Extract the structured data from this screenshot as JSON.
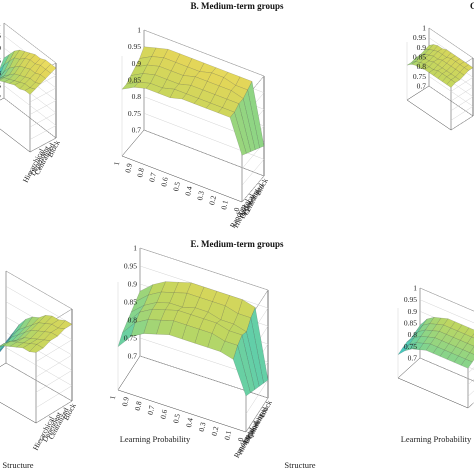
{
  "chart_data": [
    {
      "id": "A",
      "type": "surface",
      "title": "",
      "zlim": [
        0.7,
        1.0
      ],
      "z_ticks": [
        "1",
        "0.95",
        "0.9",
        "0.85",
        "0.8",
        "0.75",
        "0.7"
      ],
      "x_ticks": [],
      "y_ticks": [
        "Block",
        "Centralized",
        "Dependent",
        "Hierarchical"
      ],
      "xlabel": "",
      "ylabel": "",
      "categories_structure": [
        "Random",
        "Local",
        "Hierarchical",
        "Dependent",
        "Centralized",
        "Block"
      ],
      "learning_probability": [
        1,
        0.9,
        0.8,
        0.7,
        0.6,
        0.5,
        0.4,
        0.3,
        0.2,
        0.1,
        0
      ],
      "z": [
        [
          0.8,
          0.84,
          0.86,
          0.88,
          0.89,
          0.9,
          0.91,
          0.92,
          0.92,
          0.93,
          0.93
        ],
        [
          0.78,
          0.82,
          0.85,
          0.87,
          0.89,
          0.9,
          0.91,
          0.92,
          0.93,
          0.93,
          0.94
        ],
        [
          0.76,
          0.8,
          0.84,
          0.87,
          0.89,
          0.91,
          0.92,
          0.93,
          0.94,
          0.94,
          0.95
        ],
        [
          0.78,
          0.82,
          0.86,
          0.89,
          0.91,
          0.93,
          0.94,
          0.95,
          0.95,
          0.96,
          0.96
        ],
        [
          0.82,
          0.86,
          0.89,
          0.92,
          0.93,
          0.95,
          0.96,
          0.96,
          0.97,
          0.97,
          0.97
        ],
        [
          0.86,
          0.89,
          0.92,
          0.94,
          0.95,
          0.96,
          0.97,
          0.97,
          0.98,
          0.98,
          0.98
        ]
      ]
    },
    {
      "id": "B",
      "type": "surface",
      "title": "B. Medium-term groups",
      "zlim": [
        0.7,
        1.0
      ],
      "z_ticks": [
        "1",
        "0.95",
        "0.9",
        "0.85",
        "0.8",
        "0.75",
        "0.7"
      ],
      "x_ticks": [
        "1",
        "0.9",
        "0.8",
        "0.7",
        "0.6",
        "0.5",
        "0.4",
        "0.3",
        "0.2",
        "0.1",
        "0"
      ],
      "y_ticks": [
        "Random",
        "Local",
        "Hierarchical",
        "Dependent",
        "Centralized",
        "Block"
      ],
      "xlabel": "",
      "ylabel": "",
      "learning_probability": [
        1,
        0.9,
        0.8,
        0.7,
        0.6,
        0.5,
        0.4,
        0.3,
        0.2,
        0.1,
        0
      ],
      "categories_structure": [
        "Random",
        "Local",
        "Hierarchical",
        "Dependent",
        "Centralized",
        "Block"
      ],
      "z": [
        [
          0.9,
          0.92,
          0.93,
          0.93,
          0.93,
          0.94,
          0.94,
          0.94,
          0.94,
          0.94,
          0.84
        ],
        [
          0.9,
          0.92,
          0.93,
          0.93,
          0.94,
          0.94,
          0.94,
          0.94,
          0.94,
          0.94,
          0.83
        ],
        [
          0.91,
          0.93,
          0.94,
          0.94,
          0.94,
          0.95,
          0.95,
          0.95,
          0.95,
          0.95,
          0.82
        ],
        [
          0.92,
          0.94,
          0.95,
          0.95,
          0.95,
          0.96,
          0.96,
          0.96,
          0.96,
          0.95,
          0.81
        ],
        [
          0.93,
          0.95,
          0.96,
          0.96,
          0.96,
          0.96,
          0.97,
          0.97,
          0.96,
          0.96,
          0.8
        ],
        [
          0.95,
          0.96,
          0.97,
          0.97,
          0.97,
          0.97,
          0.97,
          0.97,
          0.97,
          0.97,
          0.79
        ]
      ]
    },
    {
      "id": "C",
      "type": "surface",
      "title": "",
      "zlim": [
        0.7,
        1.0
      ],
      "z_ticks": [
        "1",
        "0.95",
        "0.9",
        "0.85",
        "0.8",
        "0.75",
        "0.7"
      ],
      "x_ticks": [],
      "y_ticks": [],
      "xlabel": "",
      "ylabel": "",
      "learning_probability": [
        1,
        0.9,
        0.8,
        0.7,
        0.6,
        0.5,
        0.4,
        0.3,
        0.2,
        0.1,
        0
      ],
      "categories_structure": [
        "Random",
        "Local",
        "Hierarchical",
        "Dependent",
        "Centralized",
        "Block"
      ],
      "z": [
        [
          0.88,
          0.9,
          0.91,
          0.91,
          0.92,
          0.92,
          0.92,
          0.92,
          0.92,
          0.92,
          0.92
        ],
        [
          0.88,
          0.9,
          0.91,
          0.92,
          0.92,
          0.92,
          0.93,
          0.93,
          0.93,
          0.93,
          0.93
        ],
        [
          0.89,
          0.91,
          0.92,
          0.92,
          0.93,
          0.93,
          0.93,
          0.93,
          0.93,
          0.93,
          0.93
        ],
        [
          0.89,
          0.91,
          0.92,
          0.93,
          0.93,
          0.94,
          0.94,
          0.94,
          0.94,
          0.94,
          0.94
        ],
        [
          0.9,
          0.92,
          0.93,
          0.94,
          0.94,
          0.94,
          0.95,
          0.95,
          0.95,
          0.95,
          0.95
        ],
        [
          0.91,
          0.93,
          0.94,
          0.94,
          0.95,
          0.95,
          0.95,
          0.95,
          0.95,
          0.95,
          0.95
        ]
      ]
    },
    {
      "id": "D",
      "type": "surface",
      "title": "",
      "zlim": [
        0.7,
        1.0
      ],
      "z_ticks": [],
      "x_ticks": [],
      "y_ticks": [
        "Block",
        "Centralized",
        "Dependent",
        "Hierarchical"
      ],
      "xlabel": "",
      "ylabel": "Structure",
      "learning_probability": [
        1,
        0.9,
        0.8,
        0.7,
        0.6,
        0.5,
        0.4,
        0.3,
        0.2,
        0.1,
        0
      ],
      "categories_structure": [
        "Random",
        "Local",
        "Hierarchical",
        "Dependent",
        "Centralized",
        "Block"
      ],
      "z": [
        [
          0.74,
          0.78,
          0.82,
          0.85,
          0.87,
          0.89,
          0.9,
          0.91,
          0.92,
          0.92,
          0.93
        ],
        [
          0.73,
          0.77,
          0.81,
          0.84,
          0.87,
          0.89,
          0.9,
          0.91,
          0.92,
          0.93,
          0.93
        ],
        [
          0.72,
          0.76,
          0.8,
          0.84,
          0.86,
          0.88,
          0.9,
          0.91,
          0.92,
          0.93,
          0.94
        ],
        [
          0.73,
          0.77,
          0.81,
          0.85,
          0.87,
          0.89,
          0.91,
          0.92,
          0.93,
          0.94,
          0.94
        ],
        [
          0.75,
          0.79,
          0.83,
          0.86,
          0.88,
          0.9,
          0.92,
          0.93,
          0.94,
          0.94,
          0.95
        ],
        [
          0.77,
          0.81,
          0.85,
          0.88,
          0.9,
          0.91,
          0.93,
          0.94,
          0.94,
          0.95,
          0.95
        ]
      ]
    },
    {
      "id": "E",
      "type": "surface",
      "title": "E. Medium-term groups",
      "zlim": [
        0.7,
        1.0
      ],
      "z_ticks": [
        "1",
        "0.95",
        "0.9",
        "0.85",
        "0.8",
        "0.75",
        "0.7"
      ],
      "x_ticks": [
        "1",
        "0.9",
        "0.8",
        "0.7",
        "0.6",
        "0.5",
        "0.4",
        "0.3",
        "0.2",
        "0.1",
        "0"
      ],
      "y_ticks": [
        "Random",
        "Local",
        "Hierarchical",
        "Dependent",
        "Centralized",
        "Block"
      ],
      "xlabel": "Learning Probability",
      "ylabel": "Structure",
      "learning_probability": [
        1,
        0.9,
        0.8,
        0.7,
        0.6,
        0.5,
        0.4,
        0.3,
        0.2,
        0.1,
        0
      ],
      "categories_structure": [
        "Random",
        "Local",
        "Hierarchical",
        "Dependent",
        "Centralized",
        "Block"
      ],
      "z": [
        [
          0.82,
          0.86,
          0.88,
          0.89,
          0.9,
          0.9,
          0.9,
          0.9,
          0.9,
          0.89,
          0.8
        ],
        [
          0.84,
          0.88,
          0.9,
          0.91,
          0.92,
          0.92,
          0.92,
          0.92,
          0.91,
          0.91,
          0.79
        ],
        [
          0.85,
          0.89,
          0.91,
          0.92,
          0.93,
          0.93,
          0.93,
          0.93,
          0.92,
          0.92,
          0.78
        ],
        [
          0.86,
          0.89,
          0.91,
          0.92,
          0.92,
          0.93,
          0.93,
          0.92,
          0.92,
          0.91,
          0.77
        ],
        [
          0.87,
          0.9,
          0.92,
          0.93,
          0.94,
          0.94,
          0.94,
          0.94,
          0.93,
          0.93,
          0.76
        ],
        [
          0.88,
          0.91,
          0.93,
          0.94,
          0.95,
          0.95,
          0.95,
          0.95,
          0.95,
          0.94,
          0.75
        ]
      ]
    },
    {
      "id": "F",
      "type": "surface",
      "title": "",
      "zlim": [
        0.7,
        1.0
      ],
      "z_ticks": [
        "1",
        "0.95",
        "0.9",
        "0.85",
        "0.8",
        "0.75",
        "0.7"
      ],
      "x_ticks": [],
      "y_ticks": [],
      "xlabel": "Learning Probability",
      "ylabel": "",
      "learning_probability": [
        1,
        0.9,
        0.8,
        0.7,
        0.6,
        0.5,
        0.4,
        0.3,
        0.2,
        0.1,
        0
      ],
      "categories_structure": [
        "Random",
        "Local",
        "Hierarchical",
        "Dependent",
        "Centralized",
        "Block"
      ],
      "z": [
        [
          0.8,
          0.83,
          0.85,
          0.86,
          0.87,
          0.87,
          0.87,
          0.87,
          0.87,
          0.87,
          0.87
        ],
        [
          0.81,
          0.84,
          0.86,
          0.87,
          0.88,
          0.88,
          0.88,
          0.88,
          0.88,
          0.88,
          0.88
        ],
        [
          0.82,
          0.85,
          0.87,
          0.88,
          0.89,
          0.89,
          0.89,
          0.89,
          0.89,
          0.89,
          0.89
        ],
        [
          0.82,
          0.86,
          0.88,
          0.89,
          0.9,
          0.9,
          0.9,
          0.9,
          0.9,
          0.9,
          0.9
        ],
        [
          0.83,
          0.87,
          0.89,
          0.9,
          0.91,
          0.91,
          0.91,
          0.91,
          0.91,
          0.91,
          0.91
        ],
        [
          0.84,
          0.88,
          0.9,
          0.91,
          0.92,
          0.92,
          0.92,
          0.92,
          0.92,
          0.92,
          0.92
        ]
      ]
    }
  ]
}
